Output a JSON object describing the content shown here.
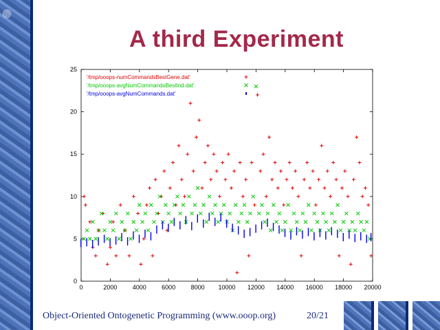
{
  "slide": {
    "title": "A third Experiment",
    "footer": "Object-Oriented Ontogenetic Programming (www.ooop.org)",
    "page": "20/21"
  },
  "chart_data": {
    "type": "scatter",
    "xlim": [
      0,
      20000
    ],
    "ylim": [
      0,
      25
    ],
    "x_ticks": [
      "0",
      "2000",
      "4000",
      "6000",
      "8000",
      "10000",
      "12000",
      "14000",
      "16000",
      "18000",
      "20000"
    ],
    "y_ticks": [
      "0",
      "5",
      "10",
      "15",
      "20",
      "25"
    ],
    "legend_position": "top-left",
    "series": [
      {
        "name": "'/tmp/ooops-numCommandsBestGene.dat'",
        "color": "#e00000",
        "marker": "+",
        "points": [
          [
            200,
            10
          ],
          [
            300,
            9
          ],
          [
            600,
            7
          ],
          [
            800,
            4
          ],
          [
            1000,
            3
          ],
          [
            1200,
            6
          ],
          [
            1500,
            8
          ],
          [
            1800,
            2
          ],
          [
            2000,
            4
          ],
          [
            2200,
            7
          ],
          [
            2400,
            3
          ],
          [
            2700,
            9
          ],
          [
            3000,
            6
          ],
          [
            3300,
            3
          ],
          [
            3600,
            10
          ],
          [
            3900,
            8
          ],
          [
            4100,
            2
          ],
          [
            4300,
            5
          ],
          [
            4500,
            9
          ],
          [
            4700,
            11
          ],
          [
            4900,
            3
          ],
          [
            5100,
            12
          ],
          [
            5300,
            8
          ],
          [
            5500,
            10
          ],
          [
            5700,
            13
          ],
          [
            5900,
            6
          ],
          [
            6100,
            11
          ],
          [
            6300,
            14
          ],
          [
            6500,
            9
          ],
          [
            6700,
            16
          ],
          [
            6900,
            12
          ],
          [
            7100,
            10
          ],
          [
            7300,
            15
          ],
          [
            7500,
            21
          ],
          [
            7700,
            13
          ],
          [
            7900,
            17
          ],
          [
            8100,
            19
          ],
          [
            8300,
            11
          ],
          [
            8500,
            14
          ],
          [
            8700,
            16
          ],
          [
            8900,
            12
          ],
          [
            9100,
            15
          ],
          [
            9300,
            13
          ],
          [
            9500,
            10
          ],
          [
            9700,
            14
          ],
          [
            9900,
            12
          ],
          [
            10100,
            15
          ],
          [
            10300,
            11
          ],
          [
            10500,
            13
          ],
          [
            10700,
            1
          ],
          [
            10900,
            14
          ],
          [
            11100,
            10
          ],
          [
            11300,
            12
          ],
          [
            11500,
            3
          ],
          [
            11700,
            14
          ],
          [
            11900,
            9
          ],
          [
            12100,
            22
          ],
          [
            12300,
            13
          ],
          [
            12500,
            15
          ],
          [
            12700,
            10
          ],
          [
            12900,
            17
          ],
          [
            13100,
            12
          ],
          [
            13300,
            14
          ],
          [
            13500,
            11
          ],
          [
            13700,
            13
          ],
          [
            13900,
            9
          ],
          [
            14100,
            12
          ],
          [
            14300,
            14
          ],
          [
            14500,
            11
          ],
          [
            14700,
            13
          ],
          [
            14900,
            10
          ],
          [
            15100,
            3
          ],
          [
            15300,
            12
          ],
          [
            15500,
            14
          ],
          [
            15700,
            11
          ],
          [
            15900,
            13
          ],
          [
            16100,
            9
          ],
          [
            16300,
            12
          ],
          [
            16500,
            16
          ],
          [
            16700,
            11
          ],
          [
            16900,
            13
          ],
          [
            17100,
            10
          ],
          [
            17300,
            14
          ],
          [
            17500,
            12
          ],
          [
            17700,
            3
          ],
          [
            17900,
            11
          ],
          [
            18100,
            13
          ],
          [
            18300,
            10
          ],
          [
            18500,
            2
          ],
          [
            18700,
            12
          ],
          [
            18900,
            17
          ],
          [
            19100,
            14
          ],
          [
            19300,
            10
          ],
          [
            19500,
            11
          ],
          [
            19700,
            9
          ],
          [
            19900,
            3
          ]
        ]
      },
      {
        "name": "'/tmp/ooops-avgNumCommandsBestInd.dat'",
        "color": "#00c800",
        "marker": "x",
        "points": [
          [
            200,
            5
          ],
          [
            400,
            6
          ],
          [
            600,
            5
          ],
          [
            800,
            7
          ],
          [
            1000,
            5
          ],
          [
            1200,
            6
          ],
          [
            1400,
            8
          ],
          [
            1600,
            6
          ],
          [
            1800,
            5
          ],
          [
            2000,
            7
          ],
          [
            2200,
            6
          ],
          [
            2400,
            8
          ],
          [
            2600,
            5
          ],
          [
            2800,
            7
          ],
          [
            3000,
            6
          ],
          [
            3200,
            8
          ],
          [
            3400,
            5
          ],
          [
            3600,
            7
          ],
          [
            3800,
            6
          ],
          [
            4000,
            9
          ],
          [
            4200,
            7
          ],
          [
            4400,
            8
          ],
          [
            4600,
            6
          ],
          [
            4800,
            9
          ],
          [
            5000,
            7
          ],
          [
            5200,
            8
          ],
          [
            5400,
            10
          ],
          [
            5600,
            7
          ],
          [
            5800,
            9
          ],
          [
            6000,
            8
          ],
          [
            6200,
            7
          ],
          [
            6400,
            9
          ],
          [
            6600,
            10
          ],
          [
            6800,
            8
          ],
          [
            7000,
            9
          ],
          [
            7200,
            7
          ],
          [
            7400,
            10
          ],
          [
            7600,
            8
          ],
          [
            7800,
            9
          ],
          [
            8000,
            11
          ],
          [
            8200,
            8
          ],
          [
            8400,
            9
          ],
          [
            8600,
            7
          ],
          [
            8800,
            10
          ],
          [
            9000,
            8
          ],
          [
            9200,
            9
          ],
          [
            9400,
            7
          ],
          [
            9600,
            8
          ],
          [
            9800,
            9
          ],
          [
            10000,
            7
          ],
          [
            10200,
            8
          ],
          [
            10400,
            6
          ],
          [
            10600,
            9
          ],
          [
            10800,
            7
          ],
          [
            11000,
            8
          ],
          [
            11200,
            9
          ],
          [
            11400,
            7
          ],
          [
            11600,
            8
          ],
          [
            11800,
            10
          ],
          [
            12000,
            23
          ],
          [
            12200,
            8
          ],
          [
            12400,
            9
          ],
          [
            12600,
            7
          ],
          [
            12800,
            8
          ],
          [
            13000,
            6
          ],
          [
            13200,
            9
          ],
          [
            13400,
            7
          ],
          [
            13600,
            8
          ],
          [
            13800,
            6
          ],
          [
            14000,
            7
          ],
          [
            14200,
            9
          ],
          [
            14400,
            6
          ],
          [
            14600,
            8
          ],
          [
            14800,
            7
          ],
          [
            15000,
            6
          ],
          [
            15200,
            8
          ],
          [
            15400,
            7
          ],
          [
            15600,
            9
          ],
          [
            15800,
            6
          ],
          [
            16000,
            8
          ],
          [
            16200,
            7
          ],
          [
            16400,
            6
          ],
          [
            16600,
            8
          ],
          [
            16800,
            7
          ],
          [
            17000,
            6
          ],
          [
            17200,
            8
          ],
          [
            17400,
            7
          ],
          [
            17600,
            9
          ],
          [
            17800,
            6
          ],
          [
            18000,
            7
          ],
          [
            18200,
            8
          ],
          [
            18400,
            6
          ],
          [
            18600,
            7
          ],
          [
            18800,
            6
          ],
          [
            19000,
            8
          ],
          [
            19200,
            7
          ],
          [
            19400,
            6
          ],
          [
            19600,
            7
          ],
          [
            19800,
            5
          ]
        ]
      },
      {
        "name": "'/tmp/ooops-avgNumCommands.dat'",
        "color": "#0000e0",
        "marker": ".",
        "points": [
          [
            0,
            4.5
          ],
          [
            400,
            4.6
          ],
          [
            800,
            4.4
          ],
          [
            1200,
            4.7
          ],
          [
            1600,
            5
          ],
          [
            2000,
            4.6
          ],
          [
            2400,
            4.8
          ],
          [
            2800,
            5.2
          ],
          [
            3200,
            4.7
          ],
          [
            3600,
            5.4
          ],
          [
            4000,
            5
          ],
          [
            4400,
            5.6
          ],
          [
            4800,
            5.3
          ],
          [
            5200,
            6.1
          ],
          [
            5600,
            6.6
          ],
          [
            6000,
            6.3
          ],
          [
            6400,
            7
          ],
          [
            6800,
            6.6
          ],
          [
            7200,
            7.2
          ],
          [
            7600,
            6.5
          ],
          [
            8000,
            7.4
          ],
          [
            8400,
            6.8
          ],
          [
            8800,
            7.6
          ],
          [
            9200,
            7
          ],
          [
            9600,
            7.5
          ],
          [
            10000,
            6.8
          ],
          [
            10400,
            6.3
          ],
          [
            10800,
            6
          ],
          [
            11200,
            5.6
          ],
          [
            11600,
            5.8
          ],
          [
            12000,
            6.2
          ],
          [
            12400,
            6.6
          ],
          [
            12800,
            6.9
          ],
          [
            13200,
            6.4
          ],
          [
            13600,
            6.1
          ],
          [
            14000,
            5.7
          ],
          [
            14400,
            5.4
          ],
          [
            14800,
            5.9
          ],
          [
            15200,
            5.5
          ],
          [
            15600,
            5.8
          ],
          [
            16000,
            5.3
          ],
          [
            16400,
            5.7
          ],
          [
            16800,
            5.4
          ],
          [
            17200,
            5.9
          ],
          [
            17600,
            5.6
          ],
          [
            18000,
            5.2
          ],
          [
            18400,
            5.5
          ],
          [
            18800,
            5.1
          ],
          [
            19200,
            5.3
          ],
          [
            19600,
            5
          ],
          [
            19900,
            5.2
          ]
        ]
      }
    ]
  }
}
